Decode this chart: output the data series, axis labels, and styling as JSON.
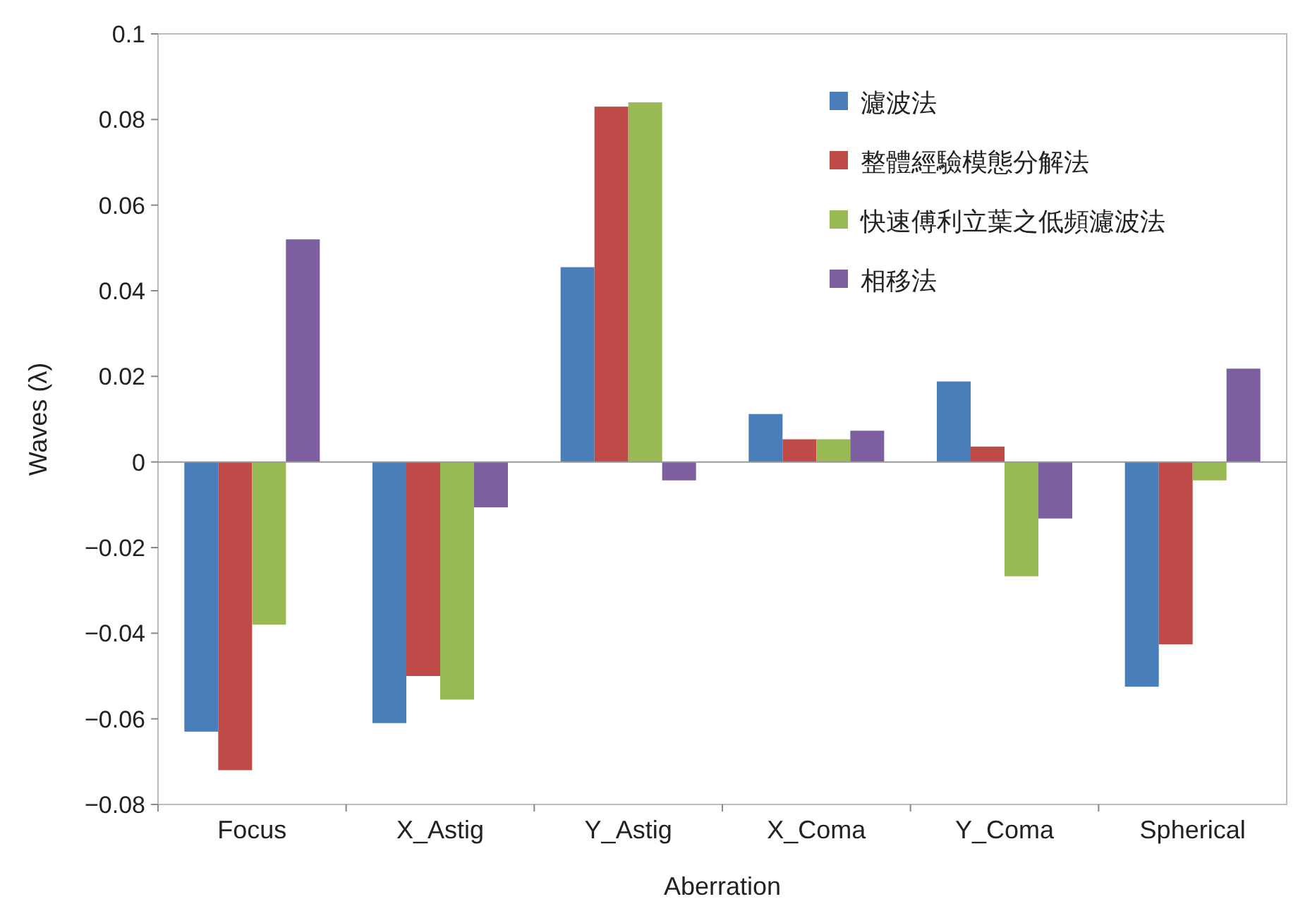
{
  "chart_data": {
    "type": "bar",
    "xlabel": "Aberration",
    "ylabel": "Waves (λ)",
    "categories": [
      "Focus",
      "X_Astig",
      "Y_Astig",
      "X_Coma",
      "Y_Coma",
      "Spherical"
    ],
    "series": [
      {
        "name": "濾波法",
        "color": "#4a7ebb",
        "values": [
          -0.063,
          -0.061,
          0.0455,
          0.0112,
          0.0188,
          -0.0525
        ]
      },
      {
        "name": "整體經驗模態分解法",
        "color": "#be4b48",
        "values": [
          -0.072,
          -0.05,
          0.083,
          0.0053,
          0.0036,
          -0.0426
        ]
      },
      {
        "name": "快速傅利立葉之低頻濾波法",
        "color": "#98b954",
        "values": [
          -0.038,
          -0.0555,
          0.084,
          0.0053,
          -0.0267,
          -0.0043
        ]
      },
      {
        "name": "相移法",
        "color": "#7d5fa0",
        "values": [
          0.052,
          -0.0106,
          -0.0043,
          0.0073,
          -0.0132,
          0.0218
        ]
      }
    ],
    "ylim": [
      -0.08,
      0.1
    ],
    "yticks": [
      {
        "value": -0.08,
        "label": "−0.08"
      },
      {
        "value": -0.06,
        "label": "−0.06"
      },
      {
        "value": -0.04,
        "label": "−0.04"
      },
      {
        "value": -0.02,
        "label": "−0.02"
      },
      0,
      0.02,
      0.04,
      0.06,
      0.08,
      0.1
    ],
    "legend": "top right"
  }
}
